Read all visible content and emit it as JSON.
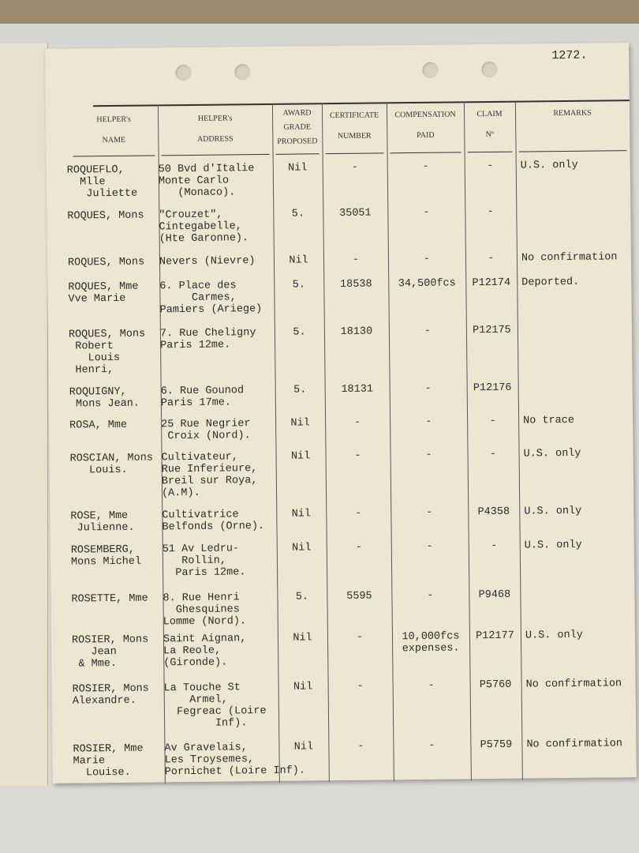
{
  "page_number": "1272.",
  "table": {
    "headers": [
      "HELPER's\nNAME",
      "HELPER's\nADDRESS",
      "AWARD\nGRADE\nPROPOSED",
      "CERTIFICATE\nNUMBER",
      "COMPENSATION\nPAID",
      "CLAIM\nNº",
      "REMARKS"
    ],
    "rows": [
      {
        "name": "ROQUEFLO,\n  Mlle\n   Juliette",
        "address": "50 Bvd d'Italie\nMonte Carlo\n   (Monaco).",
        "grade": "Nil",
        "certificate": "-",
        "compensation": "-",
        "claim": "-",
        "remarks": "U.S. only"
      },
      {
        "name": "ROQUES, Mons",
        "address": "\"Crouzet\",\nCintegabelle,\n(Hte Garonne).",
        "grade": "5.",
        "certificate": "35051",
        "compensation": "-",
        "claim": "-"
      },
      {
        "name": "ROQUES, Mons",
        "address": "Nevers (Nievre)",
        "grade": "Nil",
        "certificate": "-",
        "compensation": "-",
        "claim": "-",
        "remarks": "No confirmation"
      },
      {
        "name": "ROQUES, Mme\nVve Marie",
        "address": "6. Place des\n     Carmes,\nPamiers (Ariege)",
        "grade": "5.",
        "certificate": "18538",
        "compensation": "34,500fcs",
        "claim": "P12174",
        "remarks": "Deported."
      },
      {
        "name": "ROQUES, Mons\n Robert\n   Louis\n Henri,",
        "address": "7. Rue Cheligny\nParis 12me.",
        "grade": "5.",
        "certificate": "18130",
        "compensation": "-",
        "claim": "P12175"
      },
      {
        "name": "ROQUIGNY,\n Mons Jean.",
        "address": "6. Rue Gounod\nParis 17me.",
        "grade": "5.",
        "certificate": "18131",
        "compensation": "-",
        "claim": "P12176"
      },
      {
        "name": "ROSA, Mme",
        "address": "25 Rue Negrier\n Croix (Nord).",
        "grade": "Nil",
        "certificate": "-",
        "compensation": "-",
        "claim": "-",
        "remarks": "No trace"
      },
      {
        "name": "ROSCIAN, Mons\n   Louis.",
        "address": "Cultivateur,\nRue Inferieure,\nBreil sur Roya,\n(A.M).",
        "grade": "Nil",
        "certificate": "-",
        "compensation": "-",
        "claim": "-",
        "remarks": "U.S. only"
      },
      {
        "name": "ROSE, Mme\n Julienne.",
        "address": "Cultivatrice\nBelfonds (Orne).",
        "grade": "Nil",
        "certificate": "-",
        "compensation": "-",
        "claim": "P4358",
        "remarks": "U.S. only"
      },
      {
        "name": "ROSEMBERG,\nMons Michel",
        "address": "51 Av Ledru-\n   Rollin,\n  Paris 12me.",
        "grade": "Nil",
        "certificate": "-",
        "compensation": "-",
        "claim": "-",
        "remarks": "U.S. only"
      },
      {
        "name": "ROSETTE, Mme",
        "address": "8. Rue Henri\n  Ghesquines\nLomme (Nord).",
        "grade": "5.",
        "certificate": "5595",
        "compensation": "-",
        "claim": "P9468"
      },
      {
        "name": "ROSIER, Mons\n   Jean\n & Mme.",
        "address": "Saint Aignan,\nLa Reole,\n(Gironde).",
        "grade": "Nil",
        "certificate": "-",
        "compensation": "10,000fcs\nexpenses.",
        "claim": "P12177",
        "remarks": "U.S. only"
      },
      {
        "name": "ROSIER, Mons\nAlexandre.",
        "address": "La Touche St\n    Armel,\n  Fegreac (Loire\n        Inf).",
        "grade": "Nil",
        "certificate": "-",
        "compensation": "-",
        "claim": "P5760",
        "remarks": "No confirmation"
      },
      {
        "name": "ROSIER, Mme\nMarie\n  Louise.",
        "address": "Av Gravelais,\nLes Troysemes,\nPornichet (Loire Inf).",
        "grade": "Nil",
        "certificate": "-",
        "compensation": "-",
        "claim": "P5759",
        "remarks": "No confirmation"
      }
    ]
  }
}
